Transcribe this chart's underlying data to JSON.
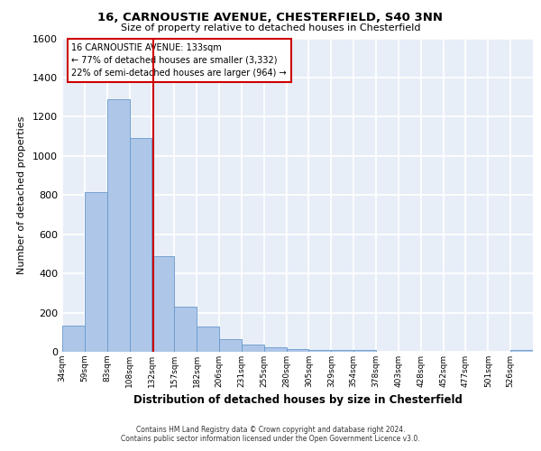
{
  "title1": "16, CARNOUSTIE AVENUE, CHESTERFIELD, S40 3NN",
  "title2": "Size of property relative to detached houses in Chesterfield",
  "xlabel": "Distribution of detached houses by size in Chesterfield",
  "ylabel": "Number of detached properties",
  "bin_labels": [
    "34sqm",
    "59sqm",
    "83sqm",
    "108sqm",
    "132sqm",
    "157sqm",
    "182sqm",
    "206sqm",
    "231sqm",
    "255sqm",
    "280sqm",
    "305sqm",
    "329sqm",
    "354sqm",
    "378sqm",
    "403sqm",
    "428sqm",
    "452sqm",
    "477sqm",
    "501sqm",
    "526sqm"
  ],
  "bar_values": [
    134,
    813,
    1290,
    1090,
    490,
    230,
    130,
    65,
    35,
    25,
    12,
    10,
    10,
    10,
    0,
    0,
    0,
    0,
    0,
    0,
    10
  ],
  "bar_color": "#aec6e8",
  "bar_edge_color": "#6699cc",
  "ylim": [
    0,
    1600
  ],
  "yticks": [
    0,
    200,
    400,
    600,
    800,
    1000,
    1200,
    1400,
    1600
  ],
  "annotation_line1": "16 CARNOUSTIE AVENUE: 133sqm",
  "annotation_line2": "← 77% of detached houses are smaller (3,332)",
  "annotation_line3": "22% of semi-detached houses are larger (964) →",
  "vline_color": "#cc0000",
  "vline_x": 4.05,
  "annotation_box_color": "#cc0000",
  "footer1": "Contains HM Land Registry data © Crown copyright and database right 2024.",
  "footer2": "Contains public sector information licensed under the Open Government Licence v3.0.",
  "background_color": "#e8eef8",
  "grid_color": "#ffffff"
}
